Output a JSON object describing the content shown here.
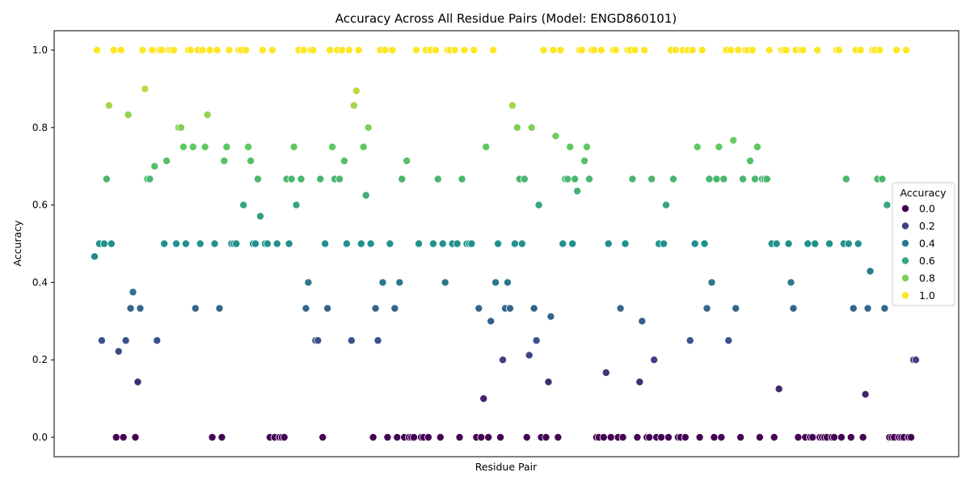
{
  "chart_data": {
    "type": "scatter",
    "title": "Accuracy Across All Residue Pairs (Model: ENGD860101)",
    "xlabel": "Residue Pair",
    "ylabel": "Accuracy",
    "ylim": [
      -0.05,
      1.05
    ],
    "yticks": [
      "0.0",
      "0.2",
      "0.4",
      "0.6",
      "0.8",
      "1.0"
    ],
    "grid": false,
    "x_tick_labels": false,
    "legend": {
      "title": "Accuracy",
      "placement": "right",
      "entries": [
        {
          "label": "0.0",
          "value": 0.0
        },
        {
          "label": "0.2",
          "value": 0.2
        },
        {
          "label": "0.4",
          "value": 0.4
        },
        {
          "label": "0.6",
          "value": 0.6
        },
        {
          "label": "0.8",
          "value": 0.8
        },
        {
          "label": "1.0",
          "value": 1.0
        }
      ]
    },
    "colormap": "viridis",
    "y": [
      0.467,
      1.0,
      0.5,
      0.25,
      0.5,
      0.667,
      0.857,
      0.5,
      1.0,
      0.0,
      0.222,
      1.0,
      0.0,
      0.25,
      0.833,
      0.333,
      0.375,
      0.0,
      0.143,
      0.333,
      1.0,
      0.9,
      0.667,
      0.667,
      1.0,
      0.7,
      0.25,
      1.0,
      1.0,
      0.5,
      0.714,
      1.0,
      1.0,
      1.0,
      0.5,
      0.8,
      0.8,
      0.75,
      0.5,
      1.0,
      1.0,
      0.75,
      0.333,
      1.0,
      0.5,
      1.0,
      0.75,
      0.833,
      1.0,
      0.0,
      0.5,
      1.0,
      0.333,
      0.0,
      0.714,
      0.75,
      1.0,
      0.5,
      0.5,
      0.5,
      1.0,
      1.0,
      0.6,
      1.0,
      0.75,
      0.714,
      0.5,
      0.5,
      0.667,
      0.571,
      1.0,
      0.5,
      0.5,
      0.0,
      1.0,
      0.0,
      0.5,
      0.0,
      0.0,
      0.0,
      0.667,
      0.5,
      0.667,
      0.75,
      0.6,
      1.0,
      0.667,
      1.0,
      0.333,
      0.4,
      1.0,
      1.0,
      0.25,
      0.25,
      0.667,
      0.0,
      0.5,
      0.333,
      1.0,
      0.75,
      0.667,
      1.0,
      0.667,
      1.0,
      0.714,
      0.5,
      1.0,
      0.25,
      0.857,
      0.895,
      1.0,
      0.5,
      0.75,
      0.625,
      0.8,
      0.5,
      0.0,
      0.333,
      0.25,
      1.0,
      0.4,
      1.0,
      0.0,
      0.5,
      1.0,
      0.333,
      0.0,
      0.4,
      0.667,
      0.0,
      0.714,
      0.0,
      0.0,
      0.0,
      1.0,
      0.5,
      0.0,
      0.0,
      1.0,
      0.0,
      1.0,
      0.5,
      1.0,
      0.667,
      0.0,
      0.5,
      0.4,
      1.0,
      1.0,
      0.5,
      1.0,
      0.5,
      0.0,
      0.667,
      1.0,
      0.5,
      0.5,
      0.5,
      1.0,
      0.0,
      0.333,
      0.0,
      0.1,
      0.75,
      0.0,
      0.3,
      1.0,
      0.4,
      0.5,
      0.0,
      0.2,
      0.333,
      0.4,
      0.333,
      0.857,
      0.5,
      0.8,
      0.667,
      0.5,
      0.667,
      0.0,
      0.212,
      0.8,
      0.333,
      0.25,
      0.6,
      0.0,
      1.0,
      0.0,
      0.143,
      0.312,
      1.0,
      0.778,
      0.0,
      1.0,
      0.5,
      0.667,
      0.667,
      0.75,
      0.5,
      0.667,
      0.636,
      1.0,
      1.0,
      0.714,
      0.75,
      0.667,
      1.0,
      1.0,
      0.0,
      0.0,
      1.0,
      0.0,
      0.167,
      0.5,
      0.0,
      1.0,
      1.0,
      0.0,
      0.333,
      0.0,
      0.5,
      1.0,
      1.0,
      0.667,
      1.0,
      0.0,
      0.143,
      0.3,
      1.0,
      0.0,
      0.0,
      0.667,
      0.2,
      0.0,
      0.5,
      0.0,
      0.5,
      0.6,
      0.0,
      1.0,
      0.667,
      1.0,
      0.0,
      0.0,
      1.0,
      0.0,
      1.0,
      0.25,
      1.0,
      0.5,
      0.75,
      0.0,
      1.0,
      0.5,
      0.333,
      0.667,
      0.4,
      0.0,
      0.667,
      0.75,
      0.0,
      0.667,
      1.0,
      0.25,
      1.0,
      0.767,
      0.333,
      1.0,
      0.0,
      0.667,
      1.0,
      1.0,
      0.714,
      1.0,
      0.667,
      0.75,
      0.0,
      0.667,
      0.667,
      0.667,
      1.0,
      0.5,
      0.0,
      0.5,
      0.125,
      1.0,
      1.0,
      1.0,
      0.5,
      0.4,
      0.333,
      1.0,
      0.0,
      1.0,
      1.0,
      0.0,
      0.5,
      0.0,
      0.0,
      0.5,
      1.0,
      0.0,
      0.0,
      0.0,
      0.0,
      0.5,
      0.0,
      0.0,
      1.0,
      1.0,
      0.0,
      0.5,
      0.667,
      0.5,
      0.0,
      0.333,
      1.0,
      0.5,
      1.0,
      0.0,
      0.111,
      0.333,
      0.429,
      1.0,
      1.0,
      0.667,
      1.0,
      0.667,
      0.333,
      0.6,
      0.0,
      0.0,
      0.0,
      1.0,
      0.0,
      0.0,
      0.0,
      1.0,
      0.0,
      0.0,
      0.2,
      0.2
    ]
  }
}
